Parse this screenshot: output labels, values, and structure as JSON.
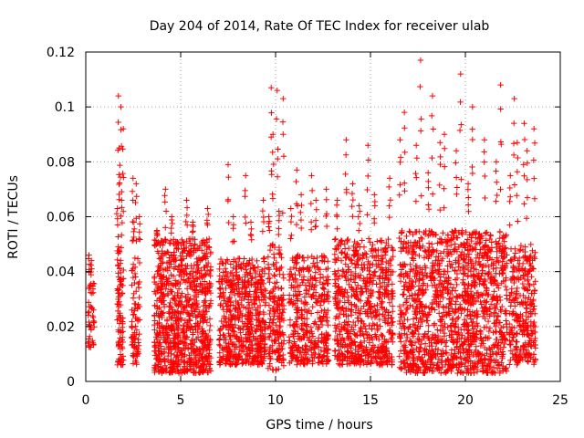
{
  "chart_data": {
    "type": "scatter",
    "title": "Day 204 of 2014, Rate Of TEC Index for receiver ulab",
    "xlabel": "GPS time / hours",
    "ylabel": "ROTI / TECUs",
    "xlim": [
      0,
      25
    ],
    "ylim": [
      0,
      0.12
    ],
    "xticks": [
      0,
      5,
      10,
      15,
      20,
      25
    ],
    "yticks": [
      0,
      0.02,
      0.04,
      0.06,
      0.08,
      0.1,
      0.12
    ],
    "xtick_labels": [
      "0",
      "5",
      "10",
      "15",
      "20",
      "25"
    ],
    "ytick_labels": [
      "0",
      "0.02",
      "0.04",
      "0.06",
      "0.08",
      "0.1",
      "0.12"
    ],
    "grid": true,
    "marker": "+",
    "color": "#ff0000",
    "clusters": [
      {
        "x": [
          0.1,
          0.45
        ],
        "ymin": 0.012,
        "ymax": 0.036,
        "n": 45,
        "peaks": [
          0.046,
          0.044
        ]
      },
      {
        "x": [
          1.65,
          2.0
        ],
        "ymin": 0.006,
        "ymax": 0.05,
        "n": 90,
        "peaks": [
          0.104,
          0.1,
          0.092,
          0.085,
          0.066,
          0.063
        ]
      },
      {
        "x": [
          2.4,
          2.85
        ],
        "ymin": 0.006,
        "ymax": 0.045,
        "n": 80,
        "peaks": [
          0.074,
          0.072,
          0.06,
          0.058
        ]
      },
      {
        "x": [
          3.6,
          6.6
        ],
        "ymin": 0.003,
        "ymax": 0.052,
        "n": 900,
        "peaks": [
          0.07,
          0.066,
          0.063,
          0.06,
          0.058,
          0.055
        ]
      },
      {
        "x": [
          7.0,
          9.5
        ],
        "ymin": 0.006,
        "ymax": 0.045,
        "n": 600,
        "peaks": [
          0.079,
          0.075,
          0.066,
          0.06,
          0.058
        ]
      },
      {
        "x": [
          9.6,
          10.45
        ],
        "ymin": 0.004,
        "ymax": 0.05,
        "n": 180,
        "peaks": [
          0.107,
          0.106,
          0.103,
          0.09,
          0.062,
          0.06
        ]
      },
      {
        "x": [
          10.7,
          12.8
        ],
        "ymin": 0.006,
        "ymax": 0.046,
        "n": 400,
        "peaks": [
          0.077,
          0.075,
          0.07,
          0.068,
          0.066,
          0.063
        ]
      },
      {
        "x": [
          13.1,
          16.2
        ],
        "ymin": 0.006,
        "ymax": 0.052,
        "n": 700,
        "peaks": [
          0.088,
          0.086,
          0.074,
          0.072,
          0.068,
          0.066,
          0.064
        ]
      },
      {
        "x": [
          16.5,
          22.2
        ],
        "ymin": 0.003,
        "ymax": 0.055,
        "n": 1400,
        "peaks": [
          0.117,
          0.112,
          0.108,
          0.104,
          0.1,
          0.098,
          0.09,
          0.088,
          0.086,
          0.084,
          0.08,
          0.076,
          0.072,
          0.088,
          0.087
        ]
      },
      {
        "x": [
          22.3,
          23.7
        ],
        "ymin": 0.006,
        "ymax": 0.05,
        "n": 300,
        "peaks": [
          0.103,
          0.094,
          0.092,
          0.087,
          0.084,
          0.075
        ]
      }
    ]
  }
}
